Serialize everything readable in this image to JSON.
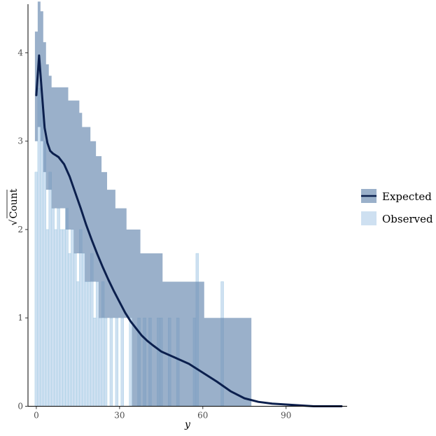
{
  "chart_data": {
    "type": "bar",
    "title": "",
    "xlabel": "y",
    "ylabel": "Count",
    "ylabel_prefix": "√",
    "xlim": [
      -3,
      112
    ],
    "ylim": [
      0,
      4.55
    ],
    "x_ticks": [
      0,
      30,
      60,
      90
    ],
    "y_ticks": [
      0,
      1,
      2,
      3,
      4
    ],
    "grid": false,
    "legend_position": "right",
    "colors": {
      "observed_fill": "#c6dbef",
      "observed_stroke": "#9ecae1",
      "expected_band": "#6f8fb3",
      "expected_line": "#0b1f4d"
    },
    "series": [
      {
        "name": "Observed",
        "kind": "bar",
        "bin_width": 1,
        "x": [
          0,
          1,
          2,
          3,
          4,
          5,
          6,
          7,
          8,
          9,
          10,
          11,
          12,
          13,
          14,
          15,
          16,
          17,
          18,
          19,
          20,
          21,
          22,
          23,
          24,
          25,
          26,
          27,
          28,
          29,
          30,
          31,
          32,
          33,
          34,
          35,
          36,
          37,
          38,
          39,
          40,
          41,
          42,
          43,
          44,
          45,
          46,
          47,
          48,
          49,
          50,
          51,
          52,
          53,
          54,
          55,
          56,
          57,
          58,
          59,
          60,
          61,
          62,
          63,
          64,
          65,
          66,
          67
        ],
        "values": [
          2.65,
          3.6,
          3.46,
          3.0,
          2.0,
          2.65,
          2.24,
          2.0,
          2.24,
          2.0,
          2.0,
          2.24,
          1.73,
          2.0,
          1.73,
          1.41,
          2.0,
          1.73,
          1.41,
          1.41,
          1.73,
          1.0,
          1.41,
          1.0,
          1.41,
          1.0,
          0,
          1.0,
          0,
          1.0,
          0,
          1.0,
          0,
          0,
          1.0,
          0,
          0,
          1.0,
          0,
          1.0,
          0,
          1.0,
          0,
          0,
          1.0,
          1.0,
          0,
          0,
          1.0,
          0,
          0,
          1.0,
          0,
          0,
          0,
          0,
          0,
          1.0,
          1.73,
          0,
          0,
          0,
          0,
          0,
          0,
          0,
          0,
          1.41
        ]
      },
      {
        "name": "Expected",
        "kind": "line+band",
        "x": [
          0,
          1,
          2,
          3,
          4,
          5,
          6,
          7,
          8,
          10,
          12,
          14,
          16,
          18,
          20,
          22,
          24,
          26,
          28,
          30,
          32,
          34,
          36,
          38,
          40,
          42,
          45,
          50,
          55,
          60,
          65,
          70,
          75,
          80,
          85,
          90,
          95,
          100,
          105,
          110
        ],
        "values": [
          3.52,
          3.97,
          3.55,
          3.15,
          2.98,
          2.89,
          2.86,
          2.84,
          2.82,
          2.74,
          2.6,
          2.42,
          2.24,
          2.05,
          1.88,
          1.72,
          1.57,
          1.43,
          1.3,
          1.18,
          1.06,
          0.96,
          0.88,
          0.8,
          0.74,
          0.69,
          0.62,
          0.55,
          0.48,
          0.38,
          0.28,
          0.17,
          0.09,
          0.05,
          0.03,
          0.02,
          0.01,
          0.0,
          0.0,
          0.0
        ],
        "band_x": [
          -0.5,
          0.5,
          1.5,
          2.5,
          3.5,
          4.5,
          5.5,
          6.5,
          7.5,
          8.5,
          9.5,
          10.5,
          11.5,
          12.5,
          13.5,
          14.5,
          15.5,
          16.5,
          17.5,
          18.5,
          19.5,
          20.5,
          21.5,
          22.5,
          23.5,
          24.5,
          25.5,
          26.5,
          27.5,
          28.5,
          29.5,
          30.5,
          31.5,
          32.5,
          33.5,
          34.5,
          35.5,
          36.5,
          37.5,
          38.5,
          39.5,
          40.5,
          41.5,
          42.5,
          43.5,
          44.5,
          45.5,
          46.5,
          47.5,
          48.5,
          49.5,
          50.5,
          51.5,
          52.5,
          53.5,
          54.5,
          55.5,
          56.5,
          57.5,
          58.5,
          59.5,
          60.5,
          61.5,
          62.5,
          63.5,
          64.5,
          65.5,
          66.5,
          67.5,
          68.5,
          69.5,
          70.5,
          71.5,
          72.5,
          73.5,
          74.5,
          75.5,
          76.5
        ],
        "band_lower": [
          3.0,
          3.16,
          3.0,
          2.65,
          2.45,
          2.45,
          2.24,
          2.24,
          2.24,
          2.24,
          2.24,
          2.0,
          2.0,
          2.0,
          1.73,
          1.73,
          1.73,
          1.73,
          1.41,
          1.41,
          1.41,
          1.41,
          1.41,
          1.0,
          1.0,
          1.0,
          1.0,
          1.0,
          1.0,
          1.0,
          1.0,
          1.0,
          1.0,
          1.0,
          1.0,
          0,
          0,
          0,
          0,
          0,
          0,
          0,
          0,
          0,
          0,
          0,
          0,
          0,
          0,
          0,
          0,
          0,
          0,
          0,
          0,
          0,
          0,
          0,
          0,
          0,
          0,
          0,
          0,
          0,
          0,
          0,
          0,
          0,
          0,
          0,
          0,
          0,
          0,
          0,
          0,
          0,
          0,
          0
        ],
        "band_upper": [
          4.24,
          4.58,
          4.47,
          4.12,
          3.87,
          3.74,
          3.61,
          3.61,
          3.61,
          3.61,
          3.61,
          3.61,
          3.46,
          3.46,
          3.46,
          3.46,
          3.32,
          3.16,
          3.16,
          3.16,
          3.0,
          3.0,
          2.83,
          2.83,
          2.65,
          2.65,
          2.45,
          2.45,
          2.45,
          2.24,
          2.24,
          2.24,
          2.24,
          2.0,
          2.0,
          2.0,
          2.0,
          2.0,
          1.73,
          1.73,
          1.73,
          1.73,
          1.73,
          1.73,
          1.73,
          1.73,
          1.41,
          1.41,
          1.41,
          1.41,
          1.41,
          1.41,
          1.41,
          1.41,
          1.41,
          1.41,
          1.41,
          1.41,
          1.41,
          1.41,
          1.41,
          1.0,
          1.0,
          1.0,
          1.0,
          1.0,
          1.0,
          1.0,
          1.0,
          1.0,
          1.0,
          1.0,
          1.0,
          1.0,
          1.0,
          1.0,
          1.0,
          1.0
        ]
      }
    ]
  }
}
